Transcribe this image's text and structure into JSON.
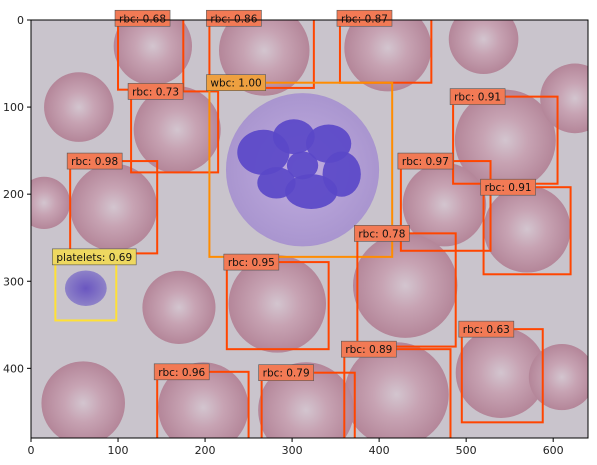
{
  "axes": {
    "x_range": [
      0,
      640
    ],
    "y_range": [
      0,
      480
    ],
    "x_ticks": [
      {
        "value": 0,
        "label": "0"
      },
      {
        "value": 100,
        "label": "100"
      },
      {
        "value": 200,
        "label": "200"
      },
      {
        "value": 300,
        "label": "300"
      },
      {
        "value": 400,
        "label": "400"
      },
      {
        "value": 500,
        "label": "500"
      },
      {
        "value": 600,
        "label": "600"
      }
    ],
    "y_ticks": [
      {
        "value": 0,
        "label": "0"
      },
      {
        "value": 100,
        "label": "100"
      },
      {
        "value": 200,
        "label": "200"
      },
      {
        "value": 300,
        "label": "300"
      },
      {
        "value": 400,
        "label": "400"
      }
    ]
  },
  "colors": {
    "rbc_box": "#ff4500",
    "rbc_label_bg": "#f27a55",
    "wbc_box": "#ff8c00",
    "wbc_label_bg": "#eea040",
    "platelet_box": "#ffe135",
    "platelet_label_bg": "#eed860",
    "smear_background": "#c9c4cc",
    "rbc_cell": "#b98e9f",
    "wbc_nucleus": "#5a48c8",
    "wbc_cytoplasm": "#b6a2d8"
  },
  "detections": [
    {
      "label": "rbc: 0.68",
      "cls": "rbc",
      "x0": 100,
      "y0": -2,
      "x1": 175,
      "y1": 80
    },
    {
      "label": "rbc: 0.86",
      "cls": "rbc",
      "x0": 205,
      "y0": -2,
      "x1": 325,
      "y1": 78
    },
    {
      "label": "rbc: 0.87",
      "cls": "rbc",
      "x0": 355,
      "y0": -2,
      "x1": 460,
      "y1": 72
    },
    {
      "label": "rbc: 0.73",
      "cls": "rbc",
      "x0": 115,
      "y0": 82,
      "x1": 215,
      "y1": 175
    },
    {
      "label": "wbc: 1.00",
      "cls": "wbc",
      "x0": 205,
      "y0": 72,
      "x1": 415,
      "y1": 272
    },
    {
      "label": "rbc: 0.91",
      "cls": "rbc",
      "x0": 485,
      "y0": 88,
      "x1": 605,
      "y1": 188
    },
    {
      "label": "rbc: 0.98",
      "cls": "rbc",
      "x0": 45,
      "y0": 162,
      "x1": 145,
      "y1": 268
    },
    {
      "label": "rbc: 0.97",
      "cls": "rbc",
      "x0": 425,
      "y0": 162,
      "x1": 528,
      "y1": 265
    },
    {
      "label": "rbc: 0.91",
      "cls": "rbc",
      "x0": 520,
      "y0": 192,
      "x1": 620,
      "y1": 292
    },
    {
      "label": "platelets: 0.69",
      "cls": "platelet",
      "x0": 28,
      "y0": 272,
      "x1": 98,
      "y1": 345
    },
    {
      "label": "rbc: 0.95",
      "cls": "rbc",
      "x0": 225,
      "y0": 278,
      "x1": 342,
      "y1": 378
    },
    {
      "label": "rbc: 0.78",
      "cls": "rbc",
      "x0": 375,
      "y0": 245,
      "x1": 488,
      "y1": 375
    },
    {
      "label": "rbc: 0.63",
      "cls": "rbc",
      "x0": 495,
      "y0": 355,
      "x1": 588,
      "y1": 462
    },
    {
      "label": "rbc: 0.89",
      "cls": "rbc",
      "x0": 360,
      "y0": 378,
      "x1": 482,
      "y1": 485
    },
    {
      "label": "rbc: 0.96",
      "cls": "rbc",
      "x0": 145,
      "y0": 404,
      "x1": 250,
      "y1": 485
    },
    {
      "label": "rbc: 0.79",
      "cls": "rbc",
      "x0": 265,
      "y0": 405,
      "x1": 372,
      "y1": 485
    }
  ],
  "scene": {
    "rbcs": [
      {
        "cx": 140,
        "cy": 30,
        "r": 45
      },
      {
        "cx": 268,
        "cy": 35,
        "r": 52
      },
      {
        "cx": 410,
        "cy": 32,
        "r": 50
      },
      {
        "cx": 520,
        "cy": 22,
        "r": 40
      },
      {
        "cx": 168,
        "cy": 126,
        "r": 50
      },
      {
        "cx": 55,
        "cy": 100,
        "r": 40
      },
      {
        "cx": 545,
        "cy": 138,
        "r": 58
      },
      {
        "cx": 95,
        "cy": 215,
        "r": 50
      },
      {
        "cx": 475,
        "cy": 212,
        "r": 48
      },
      {
        "cx": 570,
        "cy": 240,
        "r": 50
      },
      {
        "cx": 15,
        "cy": 210,
        "r": 30
      },
      {
        "cx": 283,
        "cy": 326,
        "r": 56
      },
      {
        "cx": 430,
        "cy": 305,
        "r": 60
      },
      {
        "cx": 540,
        "cy": 405,
        "r": 52
      },
      {
        "cx": 420,
        "cy": 430,
        "r": 60
      },
      {
        "cx": 198,
        "cy": 445,
        "r": 52
      },
      {
        "cx": 316,
        "cy": 448,
        "r": 55
      },
      {
        "cx": 60,
        "cy": 440,
        "r": 48
      },
      {
        "cx": 170,
        "cy": 330,
        "r": 42
      },
      {
        "cx": 625,
        "cy": 90,
        "r": 40
      },
      {
        "cx": 610,
        "cy": 410,
        "r": 38
      }
    ],
    "wbc": {
      "cx": 312,
      "cy": 172,
      "r": 88
    },
    "platelet": {
      "cx": 63,
      "cy": 308,
      "r": 24
    }
  }
}
